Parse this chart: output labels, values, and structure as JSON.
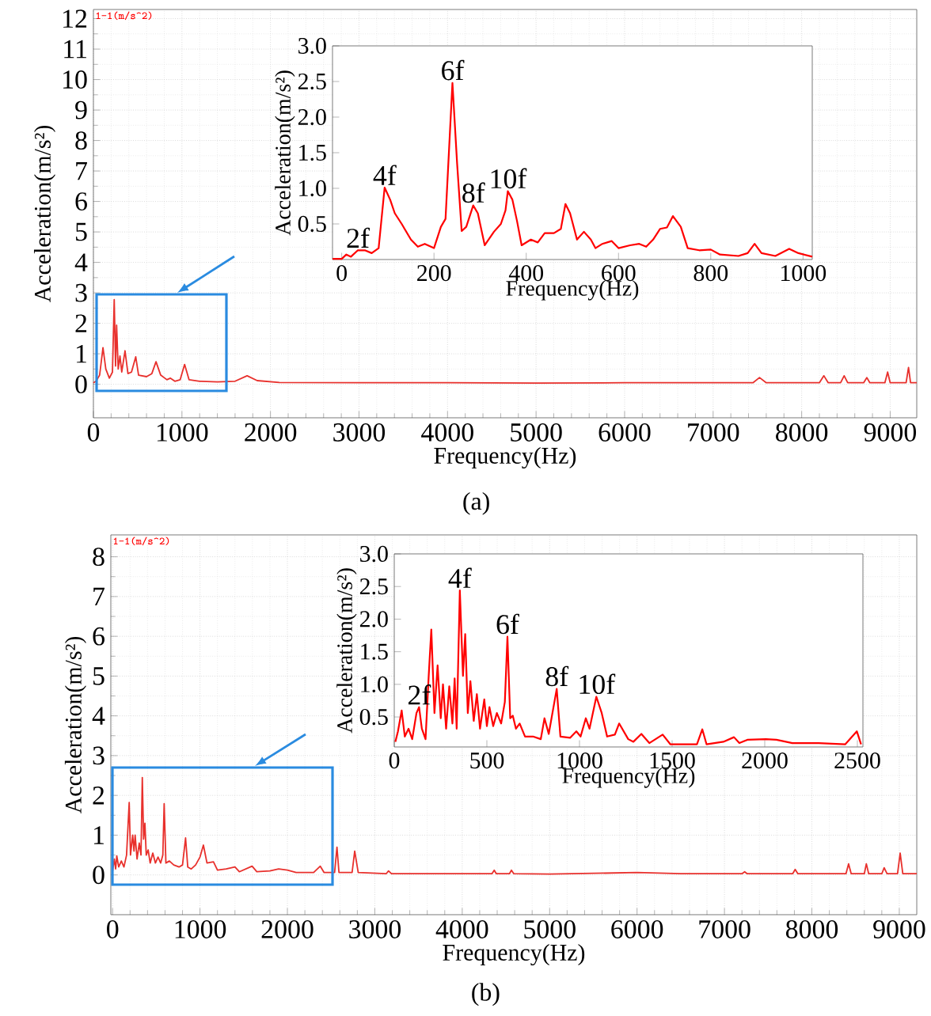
{
  "chart_data": [
    {
      "type": "line",
      "xlabel": "Frequency(Hz)",
      "ylabel": "Acceleration(m/s²)",
      "grid": true,
      "xlim": [
        0,
        9300
      ],
      "ylim": [
        -1.1,
        12.3
      ],
      "xticks": [
        0,
        1000,
        2000,
        3000,
        4000,
        5000,
        6000,
        7000,
        8000,
        9000
      ],
      "yticks": [
        0,
        1,
        2,
        3,
        4,
        5,
        6,
        7,
        8,
        9,
        10,
        11,
        12
      ],
      "x": [
        0,
        30,
        70,
        108,
        140,
        180,
        215,
        235,
        250,
        262,
        280,
        300,
        320,
        357,
        390,
        430,
        478,
        510,
        600,
        660,
        707,
        760,
        830,
        870,
        920,
        980,
        1030,
        1080,
        1200,
        1400,
        1600,
        1736,
        1850,
        2100,
        3000,
        4000,
        5000,
        6000,
        7000,
        7450,
        7524,
        7600,
        8200,
        8251,
        8300,
        8440,
        8480,
        8520,
        8700,
        8736,
        8770,
        8940,
        8971,
        9000,
        9180,
        9207,
        9230,
        9300
      ],
      "series": [
        {
          "color": "#e8302c",
          "values": [
            0.05,
            0.1,
            0.3,
            1.2,
            0.5,
            0.2,
            0.4,
            2.78,
            0.6,
            1.94,
            0.5,
            0.93,
            0.4,
            1.1,
            0.35,
            0.4,
            0.9,
            0.3,
            0.25,
            0.35,
            0.74,
            0.3,
            0.15,
            0.2,
            0.1,
            0.15,
            0.65,
            0.15,
            0.1,
            0.08,
            0.1,
            0.28,
            0.12,
            0.06,
            0.05,
            0.05,
            0.04,
            0.05,
            0.05,
            0.05,
            0.22,
            0.05,
            0.05,
            0.28,
            0.05,
            0.05,
            0.28,
            0.05,
            0.05,
            0.22,
            0.05,
            0.05,
            0.4,
            0.05,
            0.05,
            0.55,
            0.05,
            0.05
          ]
        }
      ],
      "annotations": [
        "1-1(m/s^2)",
        "(a)"
      ]
    },
    {
      "type": "line",
      "xlabel": "Frequency(Hz)",
      "ylabel": "Acceleration(m/s²)",
      "xlim": [
        -20,
        1020
      ],
      "ylim": [
        0,
        3.0
      ],
      "xticks": [
        0,
        200,
        400,
        600,
        800,
        1000
      ],
      "yticks": [
        0.5,
        {
          "value": 1.0,
          "label": "1.0"
        },
        1.5,
        {
          "value": 2.0,
          "label": "2.0"
        },
        2.5,
        {
          "value": 3.0,
          "label": "3.0"
        }
      ],
      "x": [
        -20,
        0,
        10,
        20,
        35,
        50,
        65,
        80,
        93,
        105,
        115,
        130,
        150,
        165,
        180,
        200,
        215,
        225,
        240,
        250,
        260,
        270,
        285,
        295,
        310,
        330,
        345,
        355,
        360,
        370,
        380,
        390,
        410,
        425,
        440,
        460,
        475,
        485,
        495,
        510,
        525,
        540,
        550,
        565,
        585,
        600,
        625,
        645,
        660,
        675,
        690,
        705,
        718,
        735,
        750,
        775,
        800,
        820,
        860,
        880,
        895,
        910,
        940,
        970,
        990,
        1020
      ],
      "series": [
        {
          "color": "#ff0000",
          "values": [
            0.01,
            0.01,
            0.07,
            0.04,
            0.13,
            0.13,
            0.09,
            0.16,
            1.01,
            0.84,
            0.65,
            0.5,
            0.28,
            0.18,
            0.22,
            0.16,
            0.46,
            0.57,
            2.48,
            1.36,
            0.4,
            0.46,
            0.76,
            0.65,
            0.2,
            0.39,
            0.5,
            0.69,
            0.96,
            0.84,
            0.54,
            0.2,
            0.28,
            0.24,
            0.37,
            0.37,
            0.43,
            0.78,
            0.65,
            0.28,
            0.39,
            0.28,
            0.16,
            0.22,
            0.26,
            0.16,
            0.2,
            0.22,
            0.18,
            0.28,
            0.43,
            0.45,
            0.61,
            0.46,
            0.16,
            0.13,
            0.14,
            0.07,
            0.05,
            0.09,
            0.22,
            0.09,
            0.05,
            0.15,
            0.09,
            0.04
          ]
        }
      ],
      "annotations": [
        {
          "text": "2f",
          "x": 35,
          "y": 0.13
        },
        {
          "text": "4f",
          "x": 93,
          "y": 1.01
        },
        {
          "text": "6f",
          "x": 240,
          "y": 2.48
        },
        {
          "text": "8f",
          "x": 285,
          "y": 0.76
        },
        {
          "text": "10f",
          "x": 360,
          "y": 0.96
        }
      ]
    },
    {
      "type": "line",
      "xlabel": "Frequency(Hz)",
      "ylabel": "Acceleration(m/s²)",
      "grid": true,
      "xlim": [
        -20,
        9200
      ],
      "ylim": [
        -1.0,
        8.55
      ],
      "xticks": [
        0,
        1000,
        2000,
        3000,
        4000,
        5000,
        6000,
        7000,
        8000,
        9000
      ],
      "yticks": [
        0,
        1,
        2,
        3,
        4,
        5,
        6,
        7,
        8
      ],
      "x": [
        0,
        20,
        35,
        48,
        70,
        100,
        130,
        160,
        190,
        205,
        230,
        245,
        258,
        280,
        305,
        325,
        340,
        355,
        370,
        385,
        407,
        430,
        460,
        490,
        520,
        550,
        575,
        590,
        610,
        650,
        700,
        760,
        800,
        835,
        860,
        900,
        950,
        1000,
        1039,
        1080,
        1154,
        1200,
        1300,
        1400,
        1450,
        1596,
        1650,
        1800,
        1900,
        2000,
        2100,
        2300,
        2376,
        2420,
        2540,
        2567,
        2590,
        2740,
        2770,
        2810,
        3130,
        3157,
        3190,
        4340,
        4366,
        4390,
        4540,
        4563,
        4590,
        5000,
        6000,
        6500,
        7200,
        7231,
        7260,
        7780,
        7809,
        7840,
        8390,
        8420,
        8450,
        8600,
        8623,
        8650,
        8800,
        8827,
        8860,
        8980,
        9010,
        9040,
        9200
      ],
      "series": [
        {
          "color": "#e8302c",
          "values": [
            0.1,
            0.4,
            0.15,
            0.48,
            0.2,
            0.35,
            0.2,
            0.5,
            1.82,
            0.5,
            1.0,
            0.6,
            1.0,
            0.4,
            0.8,
            0.5,
            2.45,
            0.9,
            1.3,
            0.5,
            0.63,
            0.3,
            0.55,
            0.3,
            0.45,
            0.3,
            0.5,
            1.79,
            0.3,
            0.35,
            0.25,
            0.2,
            0.25,
            0.93,
            0.2,
            0.15,
            0.25,
            0.45,
            0.75,
            0.3,
            0.33,
            0.12,
            0.15,
            0.2,
            0.08,
            0.22,
            0.08,
            0.1,
            0.15,
            0.12,
            0.06,
            0.06,
            0.22,
            0.06,
            0.06,
            0.7,
            0.06,
            0.06,
            0.6,
            0.06,
            0.03,
            0.1,
            0.03,
            0.03,
            0.12,
            0.03,
            0.03,
            0.12,
            0.03,
            0.02,
            0.06,
            0.03,
            0.03,
            0.08,
            0.03,
            0.03,
            0.14,
            0.03,
            0.03,
            0.28,
            0.03,
            0.03,
            0.28,
            0.03,
            0.03,
            0.18,
            0.03,
            0.03,
            0.55,
            0.03,
            0.03
          ]
        }
      ],
      "annotations": [
        "1-1(m/s^2)",
        "(b)"
      ]
    },
    {
      "type": "line",
      "xlabel": "Frequency(Hz)",
      "ylabel": "Acceleration(m/s²)",
      "xlim": [
        0,
        2530
      ],
      "ylim": [
        0.04,
        3.0
      ],
      "xticks": [
        0,
        500,
        1000,
        1500,
        2000,
        2500
      ],
      "yticks": [
        0.5,
        {
          "value": 1.0,
          "label": "1.0"
        },
        1.5,
        {
          "value": 2.0,
          "label": "2.0"
        },
        2.5,
        {
          "value": 3.0,
          "label": "3.0"
        }
      ],
      "x": [
        6,
        20,
        40,
        57,
        77,
        97,
        120,
        134,
        149,
        169,
        186,
        200,
        217,
        234,
        251,
        263,
        280,
        297,
        314,
        326,
        337,
        354,
        371,
        383,
        397,
        411,
        429,
        446,
        463,
        486,
        500,
        514,
        534,
        554,
        577,
        597,
        611,
        626,
        640,
        657,
        677,
        706,
        749,
        791,
        811,
        834,
        877,
        897,
        949,
        983,
        1006,
        1034,
        1054,
        1091,
        1120,
        1149,
        1191,
        1214,
        1263,
        1291,
        1334,
        1377,
        1449,
        1491,
        1634,
        1663,
        1686,
        1777,
        1834,
        1863,
        1906,
        2006,
        2063,
        2149,
        2291,
        2434,
        2497,
        2520
      ],
      "series": [
        {
          "color": "#ff0000",
          "values": [
            0.12,
            0.28,
            0.6,
            0.2,
            0.32,
            0.16,
            0.56,
            0.65,
            0.32,
            0.16,
            1.13,
            1.84,
            0.56,
            1.29,
            0.48,
            1.0,
            0.32,
            0.97,
            0.4,
            1.09,
            0.32,
            2.44,
            1.13,
            1.77,
            0.56,
            1.05,
            0.44,
            0.85,
            0.32,
            0.77,
            0.36,
            0.65,
            0.36,
            0.56,
            0.4,
            0.73,
            1.73,
            0.48,
            0.52,
            0.32,
            0.4,
            0.2,
            0.2,
            0.16,
            0.48,
            0.24,
            0.93,
            0.2,
            0.18,
            0.28,
            0.2,
            0.48,
            0.32,
            0.81,
            0.56,
            0.2,
            0.23,
            0.4,
            0.16,
            0.12,
            0.24,
            0.1,
            0.23,
            0.08,
            0.08,
            0.31,
            0.08,
            0.12,
            0.19,
            0.1,
            0.15,
            0.16,
            0.15,
            0.1,
            0.1,
            0.08,
            0.28,
            0.08
          ]
        }
      ],
      "annotations": [
        {
          "text": "2f",
          "x": 134,
          "y": 0.65
        },
        {
          "text": "4f",
          "x": 354,
          "y": 2.44
        },
        {
          "text": "6f",
          "x": 611,
          "y": 1.73
        },
        {
          "text": "8f",
          "x": 877,
          "y": 0.93
        },
        {
          "text": "10f",
          "x": 1091,
          "y": 0.81
        }
      ]
    }
  ]
}
